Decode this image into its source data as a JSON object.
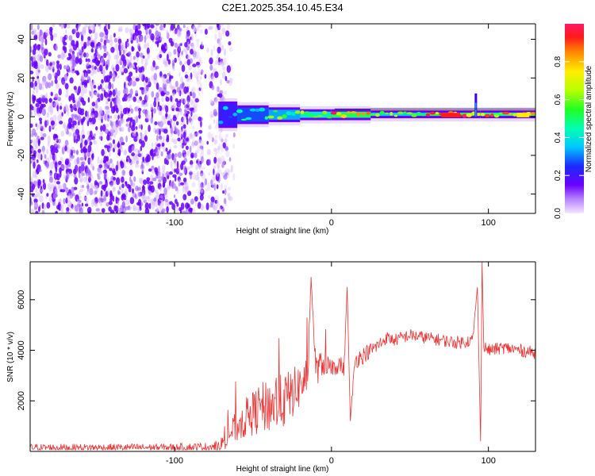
{
  "title": "C2E1.2025.354.10.45.E34",
  "chart_data": [
    {
      "type": "heatmap",
      "xlabel": "Height of straight line (km)",
      "ylabel": "Frequency (Hz)",
      "xlim": [
        -192,
        130
      ],
      "ylim": [
        -50,
        48
      ],
      "x_ticks": [
        -100,
        0,
        100
      ],
      "x_tick_labels": [
        "-100",
        "0",
        "100"
      ],
      "y_ticks": [
        -40,
        -20,
        0,
        20,
        40
      ],
      "y_tick_labels": [
        "-40",
        "-20",
        "0",
        "20",
        "40"
      ],
      "noise_region_x": [
        -192,
        -70
      ],
      "signal_band": [
        {
          "x0": -72,
          "x1": -60,
          "y0": -5,
          "y1": 7,
          "level": 0.35
        },
        {
          "x0": -60,
          "x1": -40,
          "y0": -3,
          "y1": 5,
          "level": 0.45
        },
        {
          "x0": -40,
          "x1": -20,
          "y0": -2,
          "y1": 4,
          "level": 0.55
        },
        {
          "x0": -20,
          "x1": 0,
          "y0": -1,
          "y1": 3,
          "level": 0.7
        },
        {
          "x0": 0,
          "x1": 25,
          "y0": -1,
          "y1": 3,
          "level": 0.85
        },
        {
          "x0": 25,
          "x1": 60,
          "y0": 0,
          "y1": 2.5,
          "level": 0.6
        },
        {
          "x0": 60,
          "x1": 95,
          "y0": 0,
          "y1": 2.5,
          "level": 0.9
        },
        {
          "x0": 95,
          "x1": 130,
          "y0": 0,
          "y1": 2.5,
          "level": 0.8
        }
      ],
      "transient": {
        "x": 92,
        "y0": 0,
        "y1": 12
      }
    },
    {
      "type": "line",
      "xlabel": "Height of straight line (km)",
      "ylabel": "SNR (10 * v/v)",
      "xlim": [
        -192,
        130
      ],
      "ylim": [
        0,
        7500
      ],
      "x_ticks": [
        -100,
        0,
        100
      ],
      "x_tick_labels": [
        "-100",
        "0",
        "100"
      ],
      "y_ticks": [
        2000,
        4000,
        6000
      ],
      "y_tick_labels": [
        "2000",
        "4000",
        "6000"
      ],
      "color": "#ee3333",
      "series": [
        {
          "name": "SNR",
          "x": [
            -192,
            -150,
            -100,
            -75,
            -70,
            -65,
            -60,
            -55,
            -50,
            -45,
            -40,
            -35,
            -30,
            -25,
            -20,
            -15,
            -13,
            -10,
            -5,
            0,
            5,
            8,
            10,
            12,
            15,
            20,
            25,
            30,
            35,
            40,
            50,
            60,
            70,
            80,
            90,
            93,
            95,
            96,
            97,
            98,
            100,
            110,
            120,
            130
          ],
          "y": [
            150,
            150,
            160,
            180,
            300,
            700,
            1000,
            1300,
            1500,
            1700,
            1800,
            1900,
            2000,
            2300,
            2600,
            3000,
            6900,
            3200,
            3500,
            3300,
            3500,
            3200,
            6500,
            1200,
            3600,
            3800,
            4000,
            4200,
            4500,
            4400,
            4600,
            4500,
            4400,
            4300,
            4400,
            6500,
            400,
            7500,
            4200,
            4100,
            4000,
            4100,
            4000,
            3900
          ],
          "noise": [
            150,
            150,
            150,
            180,
            300,
            500,
            650,
            800,
            900,
            1000,
            1100,
            1100,
            1100,
            1000,
            900,
            800,
            0,
            650,
            500,
            400,
            400,
            300,
            0,
            0,
            350,
            350,
            300,
            300,
            250,
            250,
            250,
            250,
            250,
            250,
            250,
            0,
            0,
            0,
            300,
            250,
            250,
            250,
            250,
            250
          ]
        }
      ]
    }
  ],
  "colorbar": {
    "label": "Normalized spectral amplitude",
    "range": [
      0,
      1
    ],
    "ticks": [
      0.0,
      0.2,
      0.4,
      0.6,
      0.8
    ],
    "tick_labels": [
      "0.0",
      "0.2",
      "0.4",
      "0.6",
      "0.8"
    ]
  }
}
